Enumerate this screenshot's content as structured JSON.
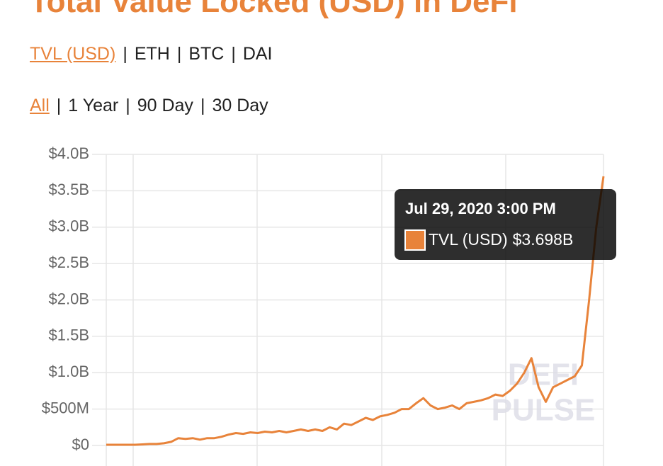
{
  "chart_data": {
    "type": "line",
    "title": "Total Value Locked (USD) in DeFi",
    "series": [
      {
        "name": "TVL (USD)",
        "color": "#e8833a",
        "values": [
          10000000,
          10000000,
          10000000,
          10000000,
          10000000,
          15000000,
          20000000,
          20000000,
          30000000,
          50000000,
          100000000,
          90000000,
          100000000,
          80000000,
          100000000,
          100000000,
          120000000,
          150000000,
          170000000,
          160000000,
          180000000,
          170000000,
          190000000,
          180000000,
          200000000,
          180000000,
          200000000,
          220000000,
          200000000,
          220000000,
          200000000,
          250000000,
          220000000,
          300000000,
          280000000,
          330000000,
          380000000,
          350000000,
          400000000,
          420000000,
          450000000,
          500000000,
          500000000,
          580000000,
          650000000,
          550000000,
          500000000,
          520000000,
          550000000,
          500000000,
          580000000,
          600000000,
          620000000,
          650000000,
          700000000,
          680000000,
          750000000,
          850000000,
          1000000000,
          1200000000,
          800000000,
          600000000,
          800000000,
          850000000,
          900000000,
          950000000,
          1100000000,
          2000000000,
          3000000000,
          3698000000
        ]
      }
    ],
    "ylim": [
      0,
      4000000000
    ],
    "yticks": [
      {
        "value": 0,
        "label": "$0"
      },
      {
        "value": 500000000,
        "label": "$500M"
      },
      {
        "value": 1000000000,
        "label": "$1.0B"
      },
      {
        "value": 1500000000,
        "label": "$1.5B"
      },
      {
        "value": 2000000000,
        "label": "$2.0B"
      },
      {
        "value": 2500000000,
        "label": "$2.5B"
      },
      {
        "value": 3000000000,
        "label": "$3.0B"
      },
      {
        "value": 3500000000,
        "label": "$3.5B"
      },
      {
        "value": 4000000000,
        "label": "$4.0B"
      }
    ],
    "grid": true,
    "tooltip": {
      "title": "Jul 29, 2020 3:00 PM",
      "value": 3698000000,
      "value_label": "$3.698B"
    },
    "watermark": [
      "DEFI",
      "PULSE"
    ]
  },
  "nav": {
    "separator": "|",
    "units": [
      "TVL (USD)",
      "ETH",
      "BTC",
      "DAI"
    ],
    "ranges": [
      "All",
      "1 Year",
      "90 Day",
      "30 Day"
    ]
  }
}
